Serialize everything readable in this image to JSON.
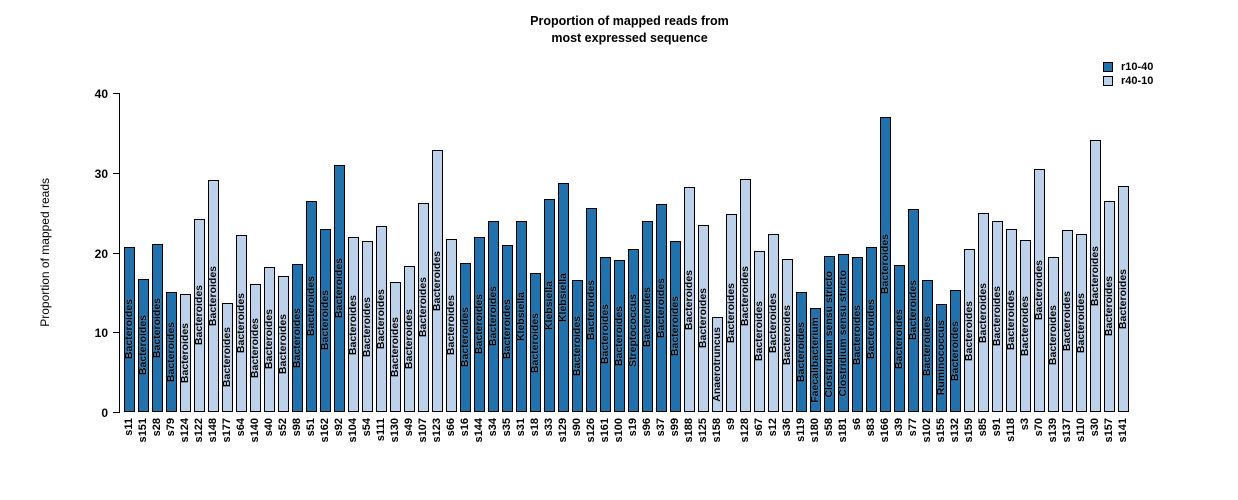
{
  "title": {
    "line1": "Proportion of mapped reads from",
    "line2": "most expressed sequence"
  },
  "y_axis": {
    "label": "Proportion of mapped reads",
    "ticks": [
      0,
      10,
      20,
      30,
      40
    ]
  },
  "legend": {
    "items": [
      {
        "label": "r10-40",
        "color": "#2171ad"
      },
      {
        "label": "r40-10",
        "color": "#bdd1ea"
      }
    ]
  },
  "chart_data": {
    "type": "bar",
    "title": "Proportion of mapped reads from most expressed sequence",
    "xlabel": "",
    "ylabel": "Proportion of mapped reads",
    "ylim": [
      0,
      40
    ],
    "grid": false,
    "legend_position": "top-right",
    "colors": {
      "r10-40": "#2171ad",
      "r40-10": "#bdd1ea"
    },
    "categories": [
      "s11",
      "s151",
      "s28",
      "s79",
      "s124",
      "s122",
      "s148",
      "s177",
      "s64",
      "s140",
      "s40",
      "s52",
      "s98",
      "s51",
      "s162",
      "s92",
      "s104",
      "s54",
      "s111",
      "s130",
      "s49",
      "s107",
      "s123",
      "s66",
      "s16",
      "s144",
      "s34",
      "s35",
      "s31",
      "s18",
      "s33",
      "s129",
      "s90",
      "s126",
      "s161",
      "s100",
      "s19",
      "s96",
      "s37",
      "s99",
      "s188",
      "s125",
      "s158",
      "s9",
      "s128",
      "s67",
      "s12",
      "s36",
      "s119",
      "s180",
      "s58",
      "s181",
      "s6",
      "s83",
      "s166",
      "s39",
      "s77",
      "s102",
      "s155",
      "s132",
      "s159",
      "s85",
      "s91",
      "s118",
      "s3",
      "s70",
      "s139",
      "s137",
      "s110",
      "s30",
      "s157",
      "s141"
    ],
    "values": [
      20.7,
      16.7,
      21.1,
      15.0,
      14.8,
      24.2,
      29.1,
      13.7,
      22.2,
      16.0,
      18.2,
      17.1,
      18.5,
      26.5,
      23.0,
      31.0,
      21.9,
      21.4,
      23.3,
      16.3,
      18.3,
      26.2,
      32.9,
      21.7,
      18.7,
      22.0,
      24.0,
      20.9,
      24.0,
      17.4,
      26.7,
      28.7,
      16.5,
      25.6,
      19.5,
      19.0,
      20.4,
      23.9,
      26.1,
      21.5,
      28.2,
      23.5,
      11.9,
      24.8,
      29.2,
      20.2,
      22.3,
      19.2,
      15.0,
      13.0,
      19.6,
      19.8,
      19.4,
      20.7,
      37.0,
      18.4,
      25.5,
      16.6,
      13.6,
      15.3,
      20.4,
      24.9,
      24.0,
      23.0,
      21.6,
      30.5,
      19.4,
      22.8,
      22.3,
      34.1,
      26.5,
      28.4
    ],
    "groups": [
      "r10-40",
      "r10-40",
      "r10-40",
      "r10-40",
      "r40-10",
      "r40-10",
      "r40-10",
      "r40-10",
      "r40-10",
      "r40-10",
      "r40-10",
      "r40-10",
      "r10-40",
      "r10-40",
      "r10-40",
      "r10-40",
      "r40-10",
      "r40-10",
      "r40-10",
      "r40-10",
      "r40-10",
      "r40-10",
      "r40-10",
      "r40-10",
      "r10-40",
      "r10-40",
      "r10-40",
      "r10-40",
      "r10-40",
      "r10-40",
      "r10-40",
      "r10-40",
      "r10-40",
      "r10-40",
      "r10-40",
      "r10-40",
      "r10-40",
      "r10-40",
      "r10-40",
      "r10-40",
      "r40-10",
      "r40-10",
      "r40-10",
      "r40-10",
      "r40-10",
      "r40-10",
      "r40-10",
      "r40-10",
      "r10-40",
      "r10-40",
      "r10-40",
      "r10-40",
      "r10-40",
      "r10-40",
      "r10-40",
      "r10-40",
      "r10-40",
      "r10-40",
      "r10-40",
      "r10-40",
      "r40-10",
      "r40-10",
      "r40-10",
      "r40-10",
      "r40-10",
      "r40-10",
      "r40-10",
      "r40-10",
      "r40-10",
      "r40-10",
      "r40-10",
      "r40-10"
    ],
    "bar_labels": [
      "Bacteroides",
      "Bacteroides",
      "Bacteroides",
      "Bacteroides",
      "Bacteroides",
      "Bacteroides",
      "Bacteroides",
      "Bacteroides",
      "Bacteroides",
      "Bacteroides",
      "Bacteroides",
      "Bacteroides",
      "Bacteroides",
      "Bacteroides",
      "Bacteroides",
      "Bacteroides",
      "Bacteroides",
      "Bacteroides",
      "Bacteroides",
      "Bacteroides",
      "Bacteroides",
      "Bacteroides",
      "Bacteroides",
      "Bacteroides",
      "Bacteroides",
      "Bacteroides",
      "Bacteroides",
      "Bacteroides",
      "Klebsiella",
      "Bacteroides",
      "Klebsiella",
      "Klebsiella",
      "Bacteroides",
      "Bacteroides",
      "Bacteroides",
      "Bacteroides",
      "Streptococcus",
      "Bacteroides",
      "Bacteroides",
      "Bacteroides",
      "Bacteroides",
      "Bacteroides",
      "Anaerotruncus",
      "Bacteroides",
      "Bacteroides",
      "Bacteroides",
      "Bacteroides",
      "Bacteroides",
      "Bacteroides",
      "Faecalibacterium",
      "Clostridium sensu stricto",
      "Clostridium sensu stricto",
      "Bacteroides",
      "Bacteroides",
      "Bacteroides",
      "Bacteroides",
      "Bacteroides",
      "Bacteroides",
      "Ruminococcus",
      "Bacteroides",
      "Bacteroides",
      "Bacteroides",
      "Bacteroides",
      "Bacteroides",
      "Bacteroides",
      "Bacteroides",
      "Bacteroides",
      "Bacteroides",
      "Bacteroides",
      "Bacteroides",
      "Bacteroides",
      "Bacteroides"
    ]
  }
}
